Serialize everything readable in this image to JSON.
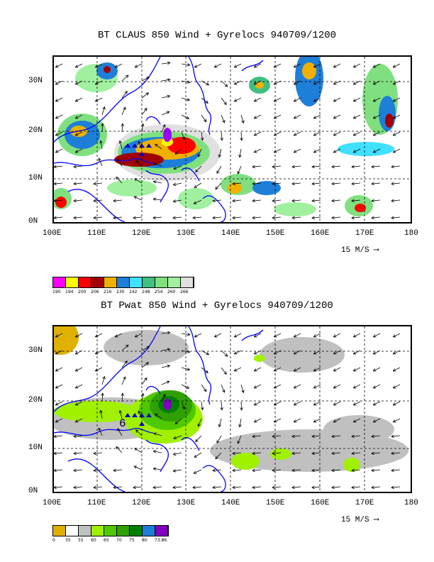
{
  "top": {
    "title": "BT CLAUS 850 Wind + Gyrelocs 940709/1200",
    "yticks": [
      "30N",
      "20N",
      "10N",
      "0N"
    ],
    "xticks": [
      "100E",
      "110E",
      "120E",
      "130E",
      "140E",
      "150E",
      "160E",
      "170E",
      "180"
    ],
    "ref_vector": "15 M/S",
    "colorbar_colors": [
      "#ff00ff",
      "#ffff00",
      "#ff0000",
      "#a00000",
      "#f0b000",
      "#1e7fd8",
      "#40e0ff",
      "#40c080",
      "#80e080",
      "#a0f0a0",
      "#e0e0e0"
    ],
    "colorbar_labels": [
      "190",
      "194",
      "200",
      "206",
      "216",
      "230",
      "242",
      "248",
      "254",
      "260",
      "266"
    ]
  },
  "bottom": {
    "title": "BT Pwat 850 Wind + Gyrelocs 940709/1200",
    "yticks": [
      "30N",
      "20N",
      "10N",
      "0N"
    ],
    "xticks": [
      "100E",
      "110E",
      "120E",
      "130E",
      "140E",
      "150E",
      "160E",
      "170E",
      "180"
    ],
    "ref_vector": "15 M/S",
    "annotation": "6",
    "colorbar_colors": [
      "#e0b000",
      "#ffffff",
      "#c0c0c0",
      "#a0f000",
      "#50c800",
      "#30a000",
      "#008000",
      "#1e7fd8",
      "#8000c0"
    ],
    "colorbar_labels": [
      "0",
      "35",
      "55",
      "60",
      "65",
      "70",
      "75",
      "80",
      "73.86"
    ]
  }
}
